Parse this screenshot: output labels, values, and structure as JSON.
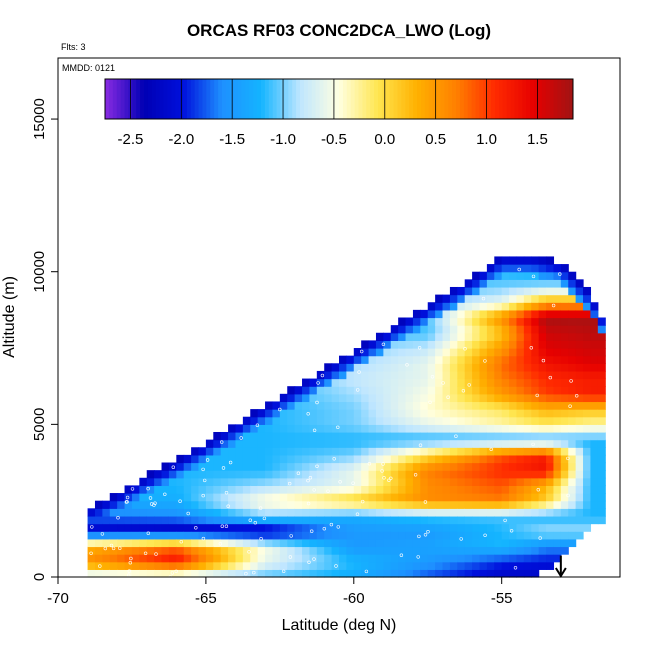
{
  "chart_data": {
    "type": "heatmap",
    "title": "ORCAS RF03 CONC2DCA_LWO (Log)",
    "annotations": {
      "flights": "Flts: 3",
      "date": "MMDD: 0121"
    },
    "xlabel": "Latitude (deg N)",
    "ylabel": "Altitude (m)",
    "xlim": [
      -70,
      -51
    ],
    "ylim": [
      0,
      17000
    ],
    "x_ticks": [
      -70,
      -65,
      -60,
      -55
    ],
    "y_ticks": [
      0,
      5000,
      10000,
      15000
    ],
    "colorbar": {
      "range": [
        -2.75,
        1.85
      ],
      "ticks": [
        -2.5,
        -2.0,
        -1.5,
        -1.0,
        -0.5,
        0.0,
        0.5,
        1.0,
        1.5
      ],
      "tick_labels": [
        "-2.5",
        "-2.0",
        "-1.5",
        "-1.0",
        "-0.5",
        "0.0",
        "0.5",
        "1.0",
        "1.5"
      ],
      "colors": [
        "#8a2be2",
        "#0000b4",
        "#0010dc",
        "#1e90ff",
        "#14b4ff",
        "#bfe6ff",
        "#ffffe0",
        "#ffe650",
        "#ffb000",
        "#ff8000",
        "#ff2a00",
        "#e60000",
        "#a01414"
      ]
    },
    "envelope": {
      "lat": [
        -69.0,
        -68.0,
        -67.0,
        -66.0,
        -65.0,
        -64.0,
        -63.0,
        -62.0,
        -61.0,
        -60.0,
        -59.0,
        -58.0,
        -57.0,
        -56.0,
        -55.0,
        -54.0,
        -53.0,
        -52.0,
        -51.7
      ],
      "top_alt": [
        2100,
        2600,
        3200,
        3700,
        4300,
        4900,
        5500,
        6100,
        6700,
        7300,
        7900,
        8500,
        9100,
        9700,
        10400,
        10400,
        10200,
        9200,
        8500
      ],
      "bottom_alt": [
        0,
        0,
        0,
        0,
        0,
        0,
        0,
        0,
        0,
        0,
        0,
        0,
        0,
        0,
        0,
        0,
        700,
        1800,
        1800
      ]
    },
    "field": {
      "lat": [
        -69,
        -66,
        -63,
        -60,
        -57.5,
        -55,
        -53.5,
        -52
      ],
      "alt": [
        0,
        500,
        1000,
        1500,
        2000,
        2500,
        3000,
        3500,
        4000,
        4500,
        5000,
        5500,
        6000,
        6500,
        7000,
        7500,
        8000,
        8500,
        9000,
        9500,
        10000,
        10500
      ],
      "values": [
        [
          -0.9,
          -0.9,
          -1.1,
          -1.3,
          -1.8,
          -2.2,
          -2.2,
          -2.2
        ],
        [
          0.6,
          1.3,
          -0.6,
          -1.2,
          -1.5,
          -1.9,
          -2.0,
          -2.0
        ],
        [
          0.3,
          0.8,
          -0.5,
          -1.5,
          -1.4,
          -1.2,
          -1.6,
          -1.6
        ],
        [
          -2.2,
          -2.3,
          -2.3,
          -1.5,
          -1.5,
          -1.2,
          -0.9,
          -0.9
        ],
        [
          -1.7,
          -1.6,
          -1.0,
          -1.3,
          -1.1,
          -1.1,
          -1.2,
          -1.2
        ],
        [
          -1.3,
          -1.3,
          -0.4,
          0.1,
          0.6,
          0.7,
          0.1,
          -1.2
        ],
        [
          -1.2,
          -1.2,
          -0.9,
          -0.6,
          0.6,
          0.9,
          0.3,
          -1.2
        ],
        [
          -1.2,
          -1.2,
          -1.2,
          -0.6,
          0.7,
          1.1,
          1.3,
          -1.2
        ],
        [
          -1.2,
          -1.2,
          -1.2,
          -1.0,
          0.0,
          0.9,
          1.2,
          -1.2
        ],
        [
          -1.2,
          -1.2,
          -1.2,
          -1.2,
          -1.2,
          -1.2,
          -1.2,
          -1.2
        ],
        [
          -1.2,
          -1.2,
          -1.2,
          -1.0,
          -0.6,
          -0.3,
          -0.1,
          -0.3
        ],
        [
          -1.2,
          -1.2,
          -1.2,
          -1.0,
          -0.4,
          -0.1,
          0.3,
          0.2
        ],
        [
          -1.2,
          -1.2,
          -1.2,
          -0.9,
          -0.5,
          0.5,
          1.0,
          1.2
        ],
        [
          -1.2,
          -1.2,
          -1.2,
          -0.8,
          -0.6,
          0.7,
          1.1,
          1.2
        ],
        [
          -1.2,
          -1.2,
          -1.2,
          -0.9,
          -0.6,
          0.8,
          1.3,
          1.5
        ],
        [
          -1.2,
          -1.2,
          -1.2,
          -1.0,
          -0.8,
          0.5,
          1.5,
          1.6
        ],
        [
          -1.2,
          -1.2,
          -1.2,
          -1.1,
          -1.1,
          0.2,
          1.6,
          1.7
        ],
        [
          -1.2,
          -1.2,
          -1.2,
          -1.2,
          -1.1,
          0.6,
          1.8,
          1.8
        ],
        [
          -1.2,
          -1.2,
          -1.2,
          -1.2,
          -1.0,
          -0.6,
          0.4,
          0.4
        ],
        [
          -1.2,
          -1.2,
          -1.2,
          -1.2,
          -1.1,
          -1.0,
          -0.9,
          -0.9
        ],
        [
          -1.2,
          -1.2,
          -1.2,
          -1.2,
          -1.2,
          -1.2,
          -1.3,
          -1.3
        ],
        [
          -1.2,
          -1.2,
          -1.2,
          -1.2,
          -1.2,
          -2.0,
          -1.3,
          -1.3
        ]
      ],
      "top_edge_value": -2.3
    },
    "arrow_marker": {
      "lat": -53.0,
      "alt_from": 700,
      "alt_to": 0
    }
  }
}
